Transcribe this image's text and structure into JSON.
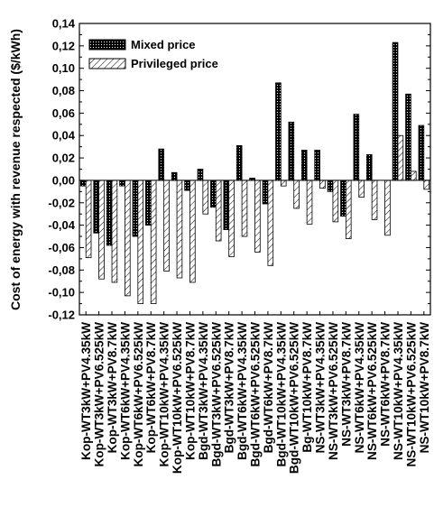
{
  "chart_data": {
    "type": "bar",
    "ylabel": "Cost of energy with revenue respected ($/kWh)",
    "ylim": [
      -0.12,
      0.14
    ],
    "yticks": [
      "-0,12",
      "-0,10",
      "-0,08",
      "-0,06",
      "-0,04",
      "-0,02",
      "0,00",
      "0,02",
      "0,04",
      "0,06",
      "0,08",
      "0,10",
      "0,12",
      "0,14"
    ],
    "grid": false,
    "legend_position": "top-left",
    "categories": [
      "Kop-WT3kW+PV4.35kW",
      "Kop-WT3kW+PV6.525kW",
      "Kop-WT3kW+PV8.7kW",
      "Kop-WT6kW+PV4.35kW",
      "Kop-WT6kW+PV6.525kW",
      "Kop-WT6kW+PV8.7kW",
      "Kop-WT10kW+PV4.35kW",
      "Kop-WT10kW+PV6.525kW",
      "Kop-WT10kW+PV8.7kW",
      "Bgd-WT3kW+PV4.35kW",
      "Bgd-WT3kW+PV6.525kW",
      "Bgd-WT3kW+PV8.7kW",
      "Bgd-WT6kW+PV4.35kW",
      "Bgd-WT6kW+PV6.525kW",
      "Bgd-WT6kW+PV8.7kW",
      "Bgd-WT10kW+PV4.35kW",
      "Bgd-WT10kW+PV6.525kW",
      "Bg-WT10kW+PV8.7kW",
      "NS-WT3kW+PV4.35kW",
      "NS-WT3kW+PV6.525kW",
      "NS-WT3kW+PV8.7kW",
      "NS-WT6kW+PV4.35kW",
      "NS-WT6kW+PV6.525kW",
      "NS-WT6kW+PV8.7kW",
      "NS-WT10kW+PV4.35kW",
      "NS-WT10kW+PV6.525kW",
      "NS-WT10kW+PV8.7kW"
    ],
    "series": [
      {
        "name": "Mixed price",
        "pattern": "dots",
        "values": [
          -0.005,
          -0.047,
          -0.058,
          -0.005,
          -0.05,
          -0.04,
          0.028,
          0.007,
          -0.009,
          0.01,
          -0.024,
          -0.044,
          0.031,
          0.002,
          -0.021,
          0.087,
          0.052,
          0.027,
          0.027,
          -0.01,
          -0.032,
          0.059,
          0.023,
          0.0,
          0.123,
          0.077,
          0.049
        ]
      },
      {
        "name": "Privileged price",
        "pattern": "hatch",
        "values": [
          -0.069,
          -0.088,
          -0.091,
          -0.103,
          -0.11,
          -0.11,
          -0.081,
          -0.087,
          -0.091,
          -0.03,
          -0.054,
          -0.068,
          -0.05,
          -0.064,
          -0.076,
          -0.005,
          -0.025,
          -0.039,
          -0.007,
          -0.037,
          -0.052,
          -0.015,
          -0.035,
          -0.049,
          0.04,
          0.008,
          -0.008
        ]
      }
    ]
  }
}
